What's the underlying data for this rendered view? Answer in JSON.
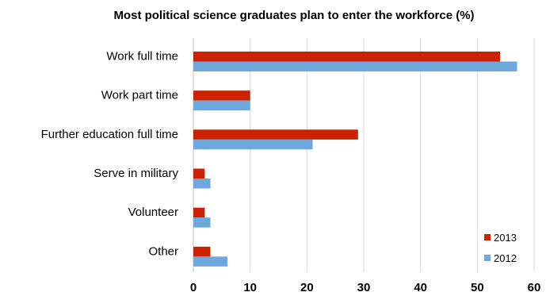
{
  "chart_data": {
    "type": "bar",
    "orientation": "horizontal",
    "title": "Most political science graduates plan to enter the workforce (%)",
    "categories": [
      "Work full time",
      "Work part time",
      "Further education full time",
      "Serve in military",
      "Volunteer",
      "Other"
    ],
    "series": [
      {
        "name": "2013",
        "color": "#cc2200",
        "values": [
          54,
          10,
          29,
          2,
          2,
          3
        ]
      },
      {
        "name": "2012",
        "color": "#6fa8dc",
        "values": [
          57,
          10,
          21,
          3,
          3,
          6
        ]
      }
    ],
    "xlim": [
      0,
      60
    ],
    "xticks": [
      "0",
      "10",
      "20",
      "30",
      "40",
      "50",
      "60"
    ],
    "grid": "vertical",
    "legend_position": "bottom-right"
  }
}
